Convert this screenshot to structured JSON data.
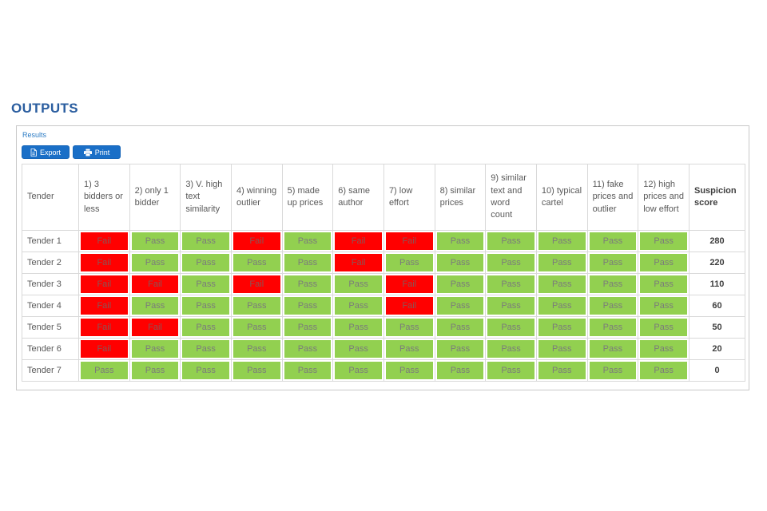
{
  "page": {
    "title": "OUTPUTS"
  },
  "panel": {
    "legend": "Results"
  },
  "toolbar": {
    "export_label": "Export",
    "print_label": "Print",
    "export_icon": "file-export-icon",
    "print_icon": "printer-icon"
  },
  "colors": {
    "heading_blue": "#2a5d9f",
    "label_blue": "#2b7bc4",
    "button_blue": "#1a6fc7",
    "pass_green": "#92d050",
    "fail_red": "#ff0000",
    "text_gray": "#595959",
    "cell_text_gray": "#7b7b7b",
    "border_gray": "#d9d9d9"
  },
  "table": {
    "corner_header": "Tender",
    "check_headers": [
      "1) 3 bidders or less",
      "2) only 1 bidder",
      "3) V. high text similarity",
      "4) winning outlier",
      "5) made up prices",
      "6) same author",
      "7) low effort",
      "8) similar prices",
      "9) similar text and word count",
      "10) typical cartel",
      "11) fake prices and outlier",
      "12) high prices and low effort"
    ],
    "score_header": "Suspicion score",
    "rows": [
      {
        "tender": "Tender 1",
        "results": [
          "Fail",
          "Pass",
          "Pass",
          "Fail",
          "Pass",
          "Fail",
          "Fail",
          "Pass",
          "Pass",
          "Pass",
          "Pass",
          "Pass"
        ],
        "score": "280"
      },
      {
        "tender": "Tender 2",
        "results": [
          "Fail",
          "Pass",
          "Pass",
          "Pass",
          "Pass",
          "Fail",
          "Pass",
          "Pass",
          "Pass",
          "Pass",
          "Pass",
          "Pass"
        ],
        "score": "220"
      },
      {
        "tender": "Tender 3",
        "results": [
          "Fail",
          "Fail",
          "Pass",
          "Fail",
          "Pass",
          "Pass",
          "Fail",
          "Pass",
          "Pass",
          "Pass",
          "Pass",
          "Pass"
        ],
        "score": "110"
      },
      {
        "tender": "Tender 4",
        "results": [
          "Fail",
          "Pass",
          "Pass",
          "Pass",
          "Pass",
          "Pass",
          "Fail",
          "Pass",
          "Pass",
          "Pass",
          "Pass",
          "Pass"
        ],
        "score": "60"
      },
      {
        "tender": "Tender 5",
        "results": [
          "Fail",
          "Fail",
          "Pass",
          "Pass",
          "Pass",
          "Pass",
          "Pass",
          "Pass",
          "Pass",
          "Pass",
          "Pass",
          "Pass"
        ],
        "score": "50"
      },
      {
        "tender": "Tender 6",
        "results": [
          "Fail",
          "Pass",
          "Pass",
          "Pass",
          "Pass",
          "Pass",
          "Pass",
          "Pass",
          "Pass",
          "Pass",
          "Pass",
          "Pass"
        ],
        "score": "20"
      },
      {
        "tender": "Tender 7",
        "results": [
          "Pass",
          "Pass",
          "Pass",
          "Pass",
          "Pass",
          "Pass",
          "Pass",
          "Pass",
          "Pass",
          "Pass",
          "Pass",
          "Pass"
        ],
        "score": "0"
      }
    ]
  }
}
